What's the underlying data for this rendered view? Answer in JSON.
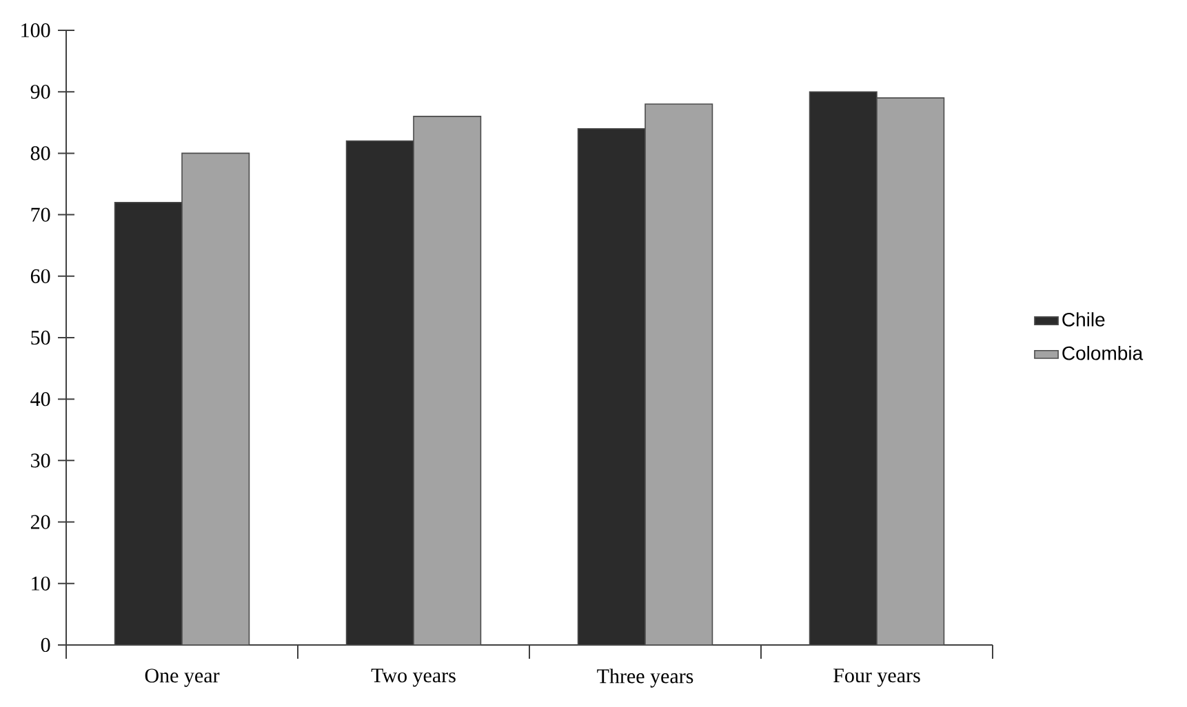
{
  "chart_data": {
    "type": "bar",
    "categories": [
      "One year",
      "Two years",
      "Three years",
      "Four years"
    ],
    "series": [
      {
        "name": "Chile",
        "color": "#2b2b2b",
        "values": [
          72,
          82,
          84,
          90
        ]
      },
      {
        "name": "Colombia",
        "color": "#a3a3a3",
        "values": [
          80,
          86,
          88,
          89
        ]
      }
    ],
    "ylim": [
      0,
      100
    ],
    "yticks": [
      0,
      10,
      20,
      30,
      40,
      50,
      60,
      70,
      80,
      90,
      100
    ],
    "grid": false,
    "legend": "right"
  }
}
